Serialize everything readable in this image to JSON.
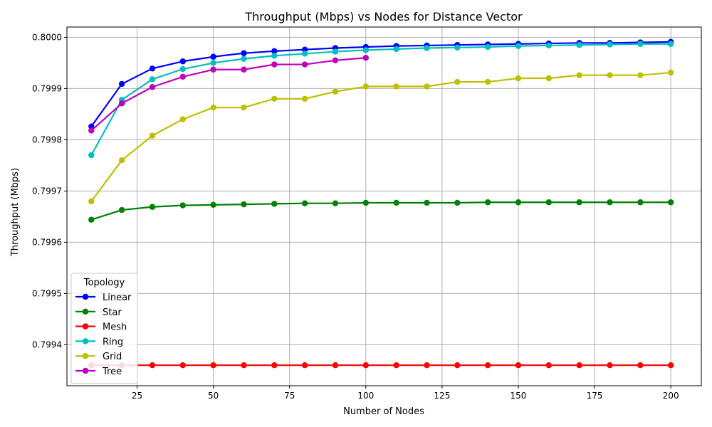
{
  "chart_data": {
    "type": "line",
    "title": "Throughput (Mbps) vs Nodes for Distance Vector",
    "xlabel": "Number of Nodes",
    "ylabel": "Throughput (Mbps)",
    "xlim": [
      2,
      210
    ],
    "ylim": [
      0.79932,
      0.80002
    ],
    "xticks": [
      25,
      50,
      75,
      100,
      125,
      150,
      175,
      200
    ],
    "xtick_labels": [
      "25",
      "50",
      "75",
      "100",
      "125",
      "150",
      "175",
      "200"
    ],
    "yticks": [
      0.7994,
      0.7995,
      0.7996,
      0.7997,
      0.7998,
      0.7999,
      0.8
    ],
    "ytick_labels": [
      "0.7994",
      "0.7995",
      "0.7996",
      "0.7997",
      "0.7998",
      "0.7999",
      "0.8000"
    ],
    "grid": true,
    "legend": {
      "title": "Topology",
      "placement": "lower-left"
    },
    "series": [
      {
        "name": "Linear",
        "color": "#0000ff",
        "x": [
          10,
          20,
          30,
          40,
          50,
          60,
          70,
          80,
          90,
          100,
          110,
          120,
          130,
          140,
          150,
          160,
          170,
          180,
          190,
          200
        ],
        "values": [
          0.799826,
          0.799909,
          0.799939,
          0.799953,
          0.799962,
          0.799969,
          0.799973,
          0.799976,
          0.799979,
          0.799981,
          0.799983,
          0.799984,
          0.799985,
          0.799986,
          0.799987,
          0.799988,
          0.799989,
          0.799989,
          0.79999,
          0.799991
        ]
      },
      {
        "name": "Star",
        "color": "#008000",
        "x": [
          10,
          20,
          30,
          40,
          50,
          60,
          70,
          80,
          90,
          100,
          110,
          120,
          130,
          140,
          150,
          160,
          170,
          180,
          190,
          200
        ],
        "values": [
          0.799644,
          0.799663,
          0.799669,
          0.799672,
          0.799673,
          0.799674,
          0.799675,
          0.799676,
          0.799676,
          0.799677,
          0.799677,
          0.799677,
          0.799677,
          0.799678,
          0.799678,
          0.799678,
          0.799678,
          0.799678,
          0.799678,
          0.799678
        ]
      },
      {
        "name": "Mesh",
        "color": "#ff0000",
        "x": [
          10,
          20,
          30,
          40,
          50,
          60,
          70,
          80,
          90,
          100,
          110,
          120,
          130,
          140,
          150,
          160,
          170,
          180,
          190,
          200
        ],
        "values": [
          0.79936,
          0.79936,
          0.79936,
          0.79936,
          0.79936,
          0.79936,
          0.79936,
          0.79936,
          0.79936,
          0.79936,
          0.79936,
          0.79936,
          0.79936,
          0.79936,
          0.79936,
          0.79936,
          0.79936,
          0.79936,
          0.79936,
          0.79936
        ]
      },
      {
        "name": "Ring",
        "color": "#00bfbf",
        "x": [
          10,
          20,
          30,
          40,
          50,
          60,
          70,
          80,
          90,
          100,
          110,
          120,
          130,
          140,
          150,
          160,
          170,
          180,
          190,
          200
        ],
        "values": [
          0.79977,
          0.799878,
          0.799918,
          0.799938,
          0.79995,
          0.799958,
          0.799964,
          0.799968,
          0.799972,
          0.799975,
          0.799977,
          0.799979,
          0.79998,
          0.799981,
          0.799983,
          0.799984,
          0.799985,
          0.799986,
          0.799987,
          0.799987
        ]
      },
      {
        "name": "Grid",
        "color": "#bfbf00",
        "x": [
          10,
          20,
          30,
          40,
          50,
          60,
          70,
          80,
          90,
          100,
          110,
          120,
          130,
          140,
          150,
          160,
          170,
          180,
          190,
          200
        ],
        "values": [
          0.79968,
          0.79976,
          0.799808,
          0.79984,
          0.799863,
          0.799863,
          0.79988,
          0.79988,
          0.799894,
          0.799904,
          0.799904,
          0.799904,
          0.799913,
          0.799913,
          0.79992,
          0.79992,
          0.799926,
          0.799926,
          0.799926,
          0.799931
        ]
      },
      {
        "name": "Tree",
        "color": "#bf00bf",
        "x": [
          10,
          20,
          30,
          40,
          50,
          60,
          70,
          80,
          90,
          100
        ],
        "values": [
          0.799818,
          0.799871,
          0.799903,
          0.799923,
          0.799937,
          0.799937,
          0.799947,
          0.799947,
          0.799955,
          0.79996
        ]
      }
    ]
  }
}
